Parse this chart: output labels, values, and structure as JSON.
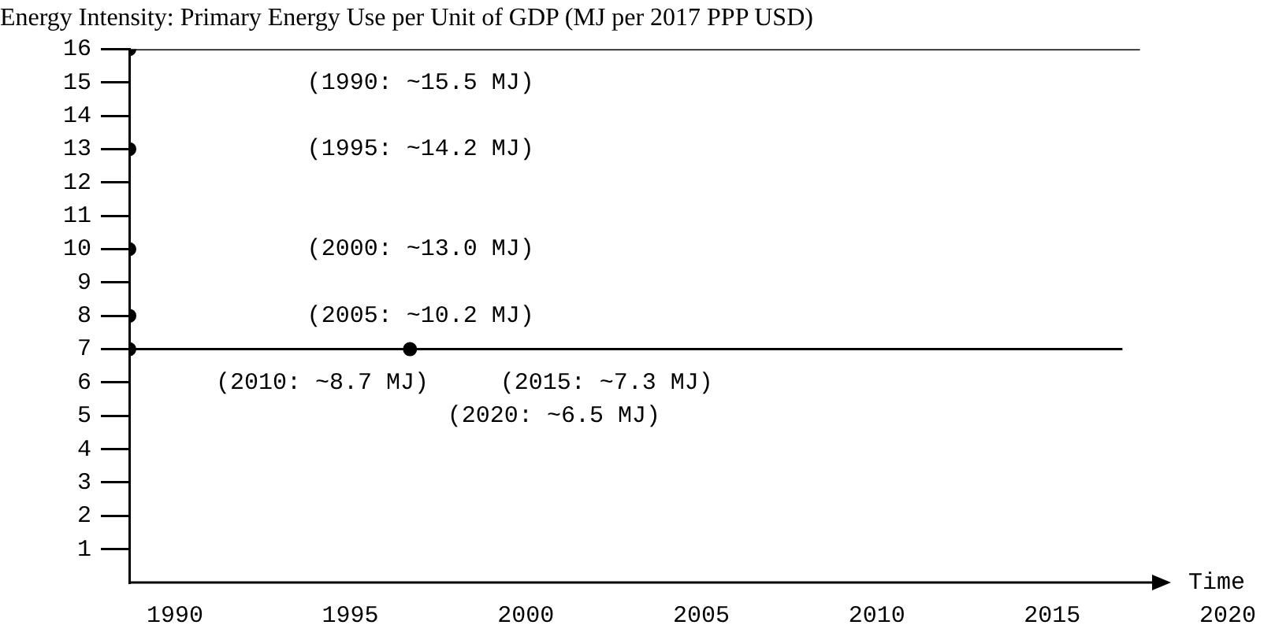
{
  "chart_data": {
    "type": "scatter",
    "title": "Energy Intensity: Primary Energy Use per Unit of GDP (MJ per 2017 PPP USD)",
    "xlabel": "Time",
    "xlim": [
      1988.7,
      2020
    ],
    "xticks": [
      1990,
      1995,
      2000,
      2005,
      2010,
      2015,
      2020
    ],
    "ylim": [
      0,
      16
    ],
    "yticks": [
      1,
      2,
      3,
      4,
      5,
      6,
      7,
      8,
      9,
      10,
      11,
      12,
      13,
      14,
      15,
      16
    ],
    "grid": false,
    "legend": false,
    "marker": "circle",
    "color": "#000000",
    "series": [
      {
        "x": [
          1988.7,
          1988.7,
          1988.7,
          1988.7,
          1988.7,
          1996.7
        ],
        "values": [
          16,
          13,
          10,
          8,
          7,
          7
        ]
      },
      {
        "type": "line",
        "color": "#000000",
        "marker": "none",
        "x": [
          1988.7,
          2017.5
        ],
        "values": [
          16,
          16
        ]
      },
      {
        "type": "line",
        "color": "#000000",
        "marker": "none",
        "x": [
          1988.7,
          2017
        ],
        "values": [
          7,
          7
        ]
      }
    ],
    "annotations": [
      "(1990: ~15.5 MJ)",
      "(1995: ~14.2 MJ)",
      "(2000: ~13.0 MJ)",
      "(2005: ~10.2 MJ)",
      "(2010: ~8.7 MJ)",
      "(2015: ~7.3 MJ)",
      "(2020: ~6.5 MJ)"
    ]
  }
}
